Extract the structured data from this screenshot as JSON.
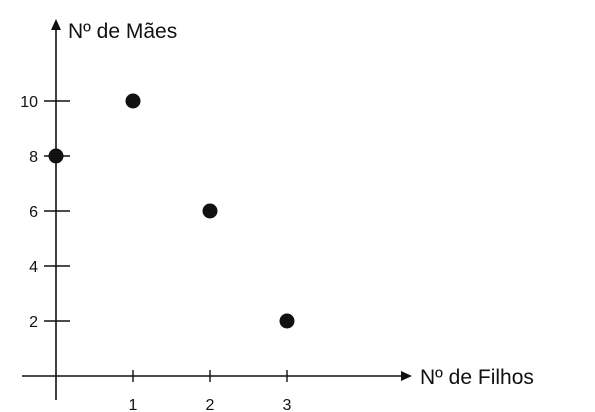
{
  "chart_data": {
    "type": "scatter",
    "title": "",
    "xlabel": "Nº de Filhos",
    "ylabel": "Nº de Mães",
    "x_ticks": [
      "1",
      "2",
      "3"
    ],
    "y_ticks": [
      "2",
      "4",
      "6",
      "8",
      "10"
    ],
    "xlim": [
      0,
      4
    ],
    "ylim": [
      0,
      12
    ],
    "grid": false,
    "series": [
      {
        "points": [
          {
            "x": 0,
            "y": 8
          },
          {
            "x": 1,
            "y": 10
          },
          {
            "x": 2,
            "y": 6
          },
          {
            "x": 3,
            "y": 2
          }
        ]
      }
    ],
    "colors": {
      "axis": "#111111",
      "point": "#111111"
    }
  }
}
